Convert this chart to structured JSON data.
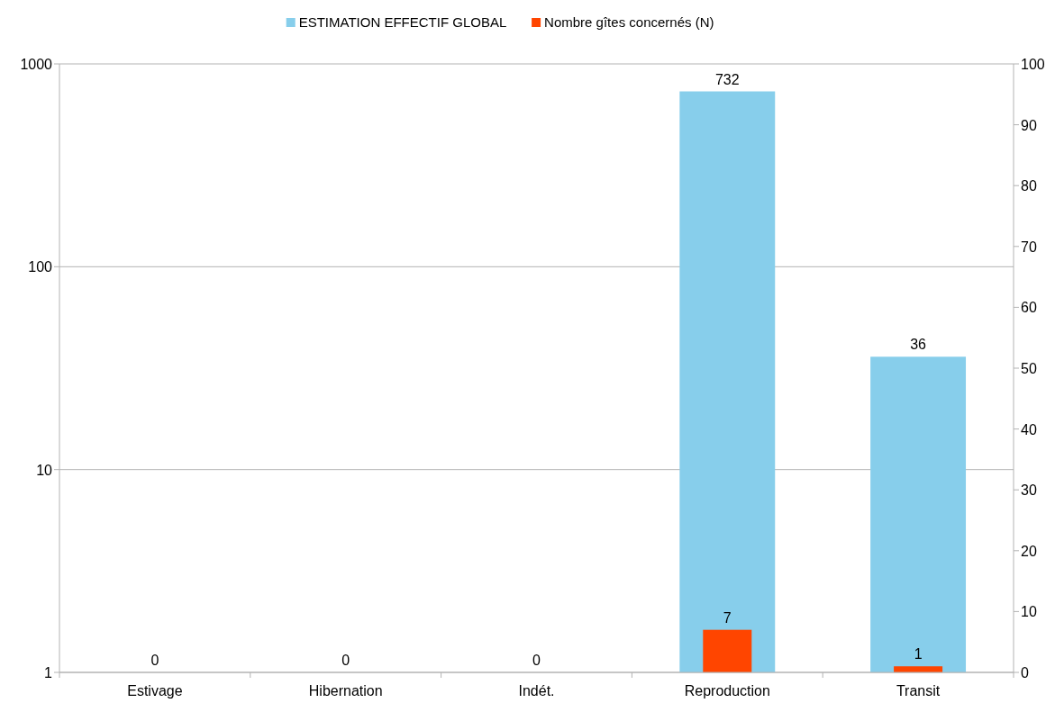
{
  "chart_data": {
    "type": "bar",
    "categories": [
      "Estivage",
      "Hibernation",
      "Indét.",
      "Reproduction",
      "Transit"
    ],
    "series": [
      {
        "name": "ESTIMATION  EFFECTIF GLOBAL",
        "color": "#87ceeb",
        "values": [
          null,
          null,
          null,
          732,
          36
        ]
      },
      {
        "name": "Nombre gîtes concernés (N)",
        "color": "#ff4500",
        "values": [
          0,
          0,
          0,
          7,
          1
        ],
        "axis": "y2"
      }
    ],
    "log": "y",
    "ylim": [
      1,
      1000
    ],
    "yticks": [
      1,
      10,
      100,
      1000
    ],
    "y2lim": [
      0,
      100
    ],
    "y2ticks": [
      0,
      10,
      20,
      30,
      40,
      50,
      60,
      70,
      80,
      90,
      100
    ],
    "grid": "y",
    "legend": "top",
    "data_labels": true
  }
}
